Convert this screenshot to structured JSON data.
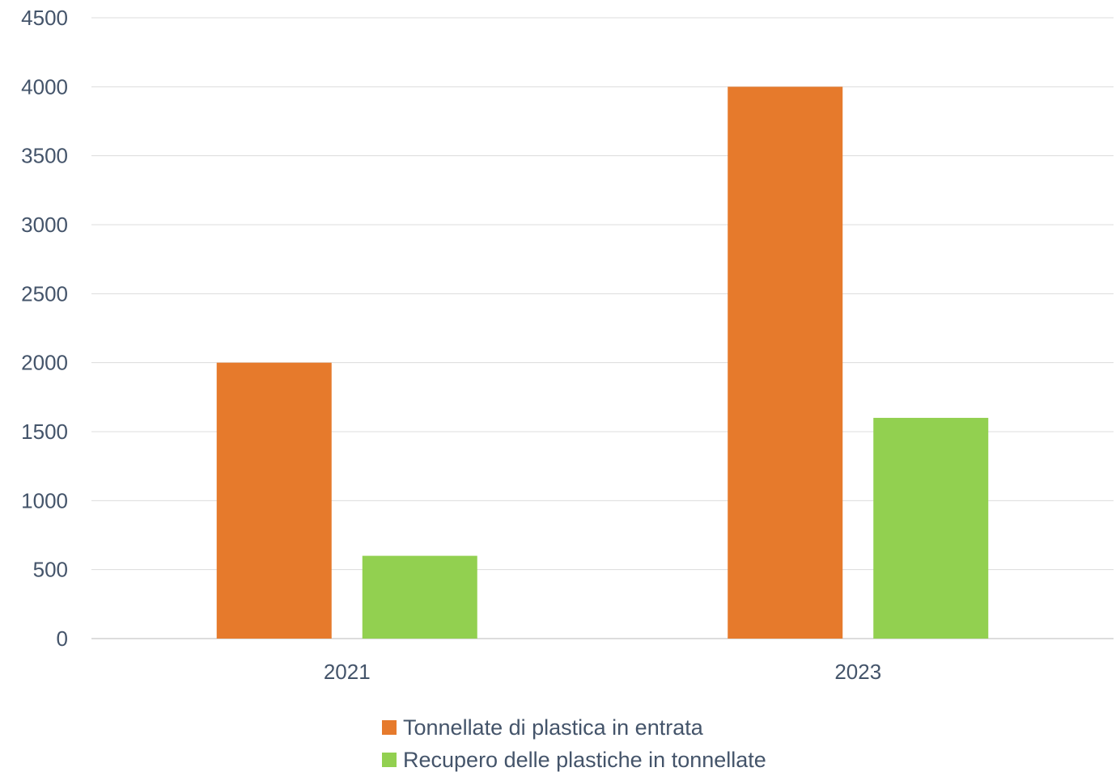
{
  "chart_data": {
    "type": "bar",
    "categories": [
      "2021",
      "2023"
    ],
    "series": [
      {
        "name": "Tonnellate di plastica in entrata",
        "values": [
          2000,
          4000
        ],
        "color": "#e67a2c"
      },
      {
        "name": "Recupero delle plastiche in tonnellate",
        "values": [
          600,
          1600
        ],
        "color": "#92d050"
      }
    ],
    "ylim": [
      0,
      4500
    ],
    "yticks": [
      0,
      500,
      1000,
      1500,
      2000,
      2500,
      3000,
      3500,
      4000,
      4500
    ],
    "grid": true,
    "legend_position": "bottom",
    "title": "",
    "xlabel": "",
    "ylabel": ""
  }
}
